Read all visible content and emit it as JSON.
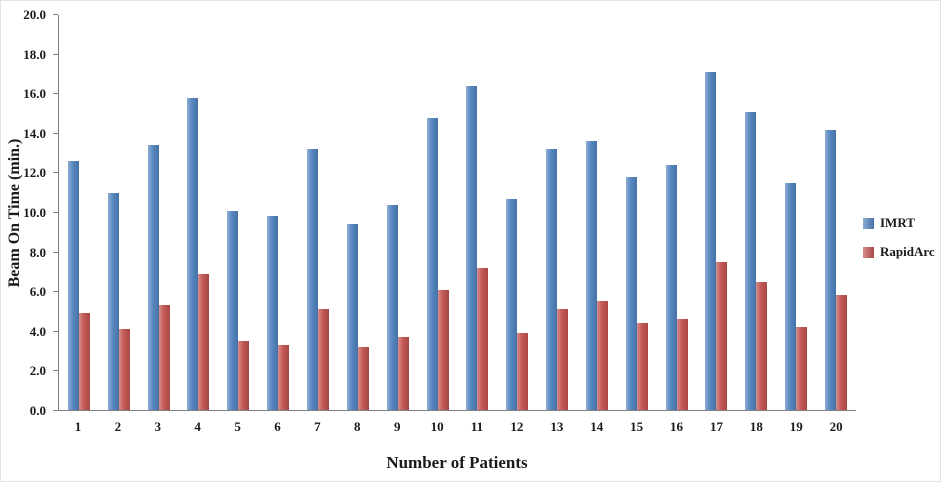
{
  "chart_data": {
    "type": "bar",
    "title": "",
    "xlabel": "Number of Patients",
    "ylabel": "Beam On Time (min.)",
    "ylim": [
      0,
      20
    ],
    "ytick_step": 2,
    "yticks": [
      "0.0",
      "2.0",
      "4.0",
      "6.0",
      "8.0",
      "10.0",
      "12.0",
      "14.0",
      "16.0",
      "18.0",
      "20.0"
    ],
    "categories": [
      "1",
      "2",
      "3",
      "4",
      "5",
      "6",
      "7",
      "8",
      "9",
      "10",
      "11",
      "12",
      "13",
      "14",
      "15",
      "16",
      "17",
      "18",
      "19",
      "20"
    ],
    "series": [
      {
        "name": "IMRT",
        "color": "#4f81bd",
        "values": [
          12.6,
          11.0,
          13.4,
          15.8,
          10.1,
          9.8,
          13.2,
          9.4,
          10.4,
          14.8,
          16.4,
          10.7,
          13.2,
          13.6,
          11.8,
          12.4,
          17.1,
          15.1,
          11.5,
          14.2
        ]
      },
      {
        "name": "RapidArc",
        "color": "#c0504d",
        "values": [
          4.9,
          4.1,
          5.3,
          6.9,
          3.5,
          3.3,
          5.1,
          3.2,
          3.7,
          6.1,
          7.2,
          3.9,
          5.1,
          5.5,
          4.4,
          4.6,
          7.5,
          6.5,
          4.2,
          5.8
        ]
      }
    ],
    "legend_position": "right",
    "grid": false
  }
}
